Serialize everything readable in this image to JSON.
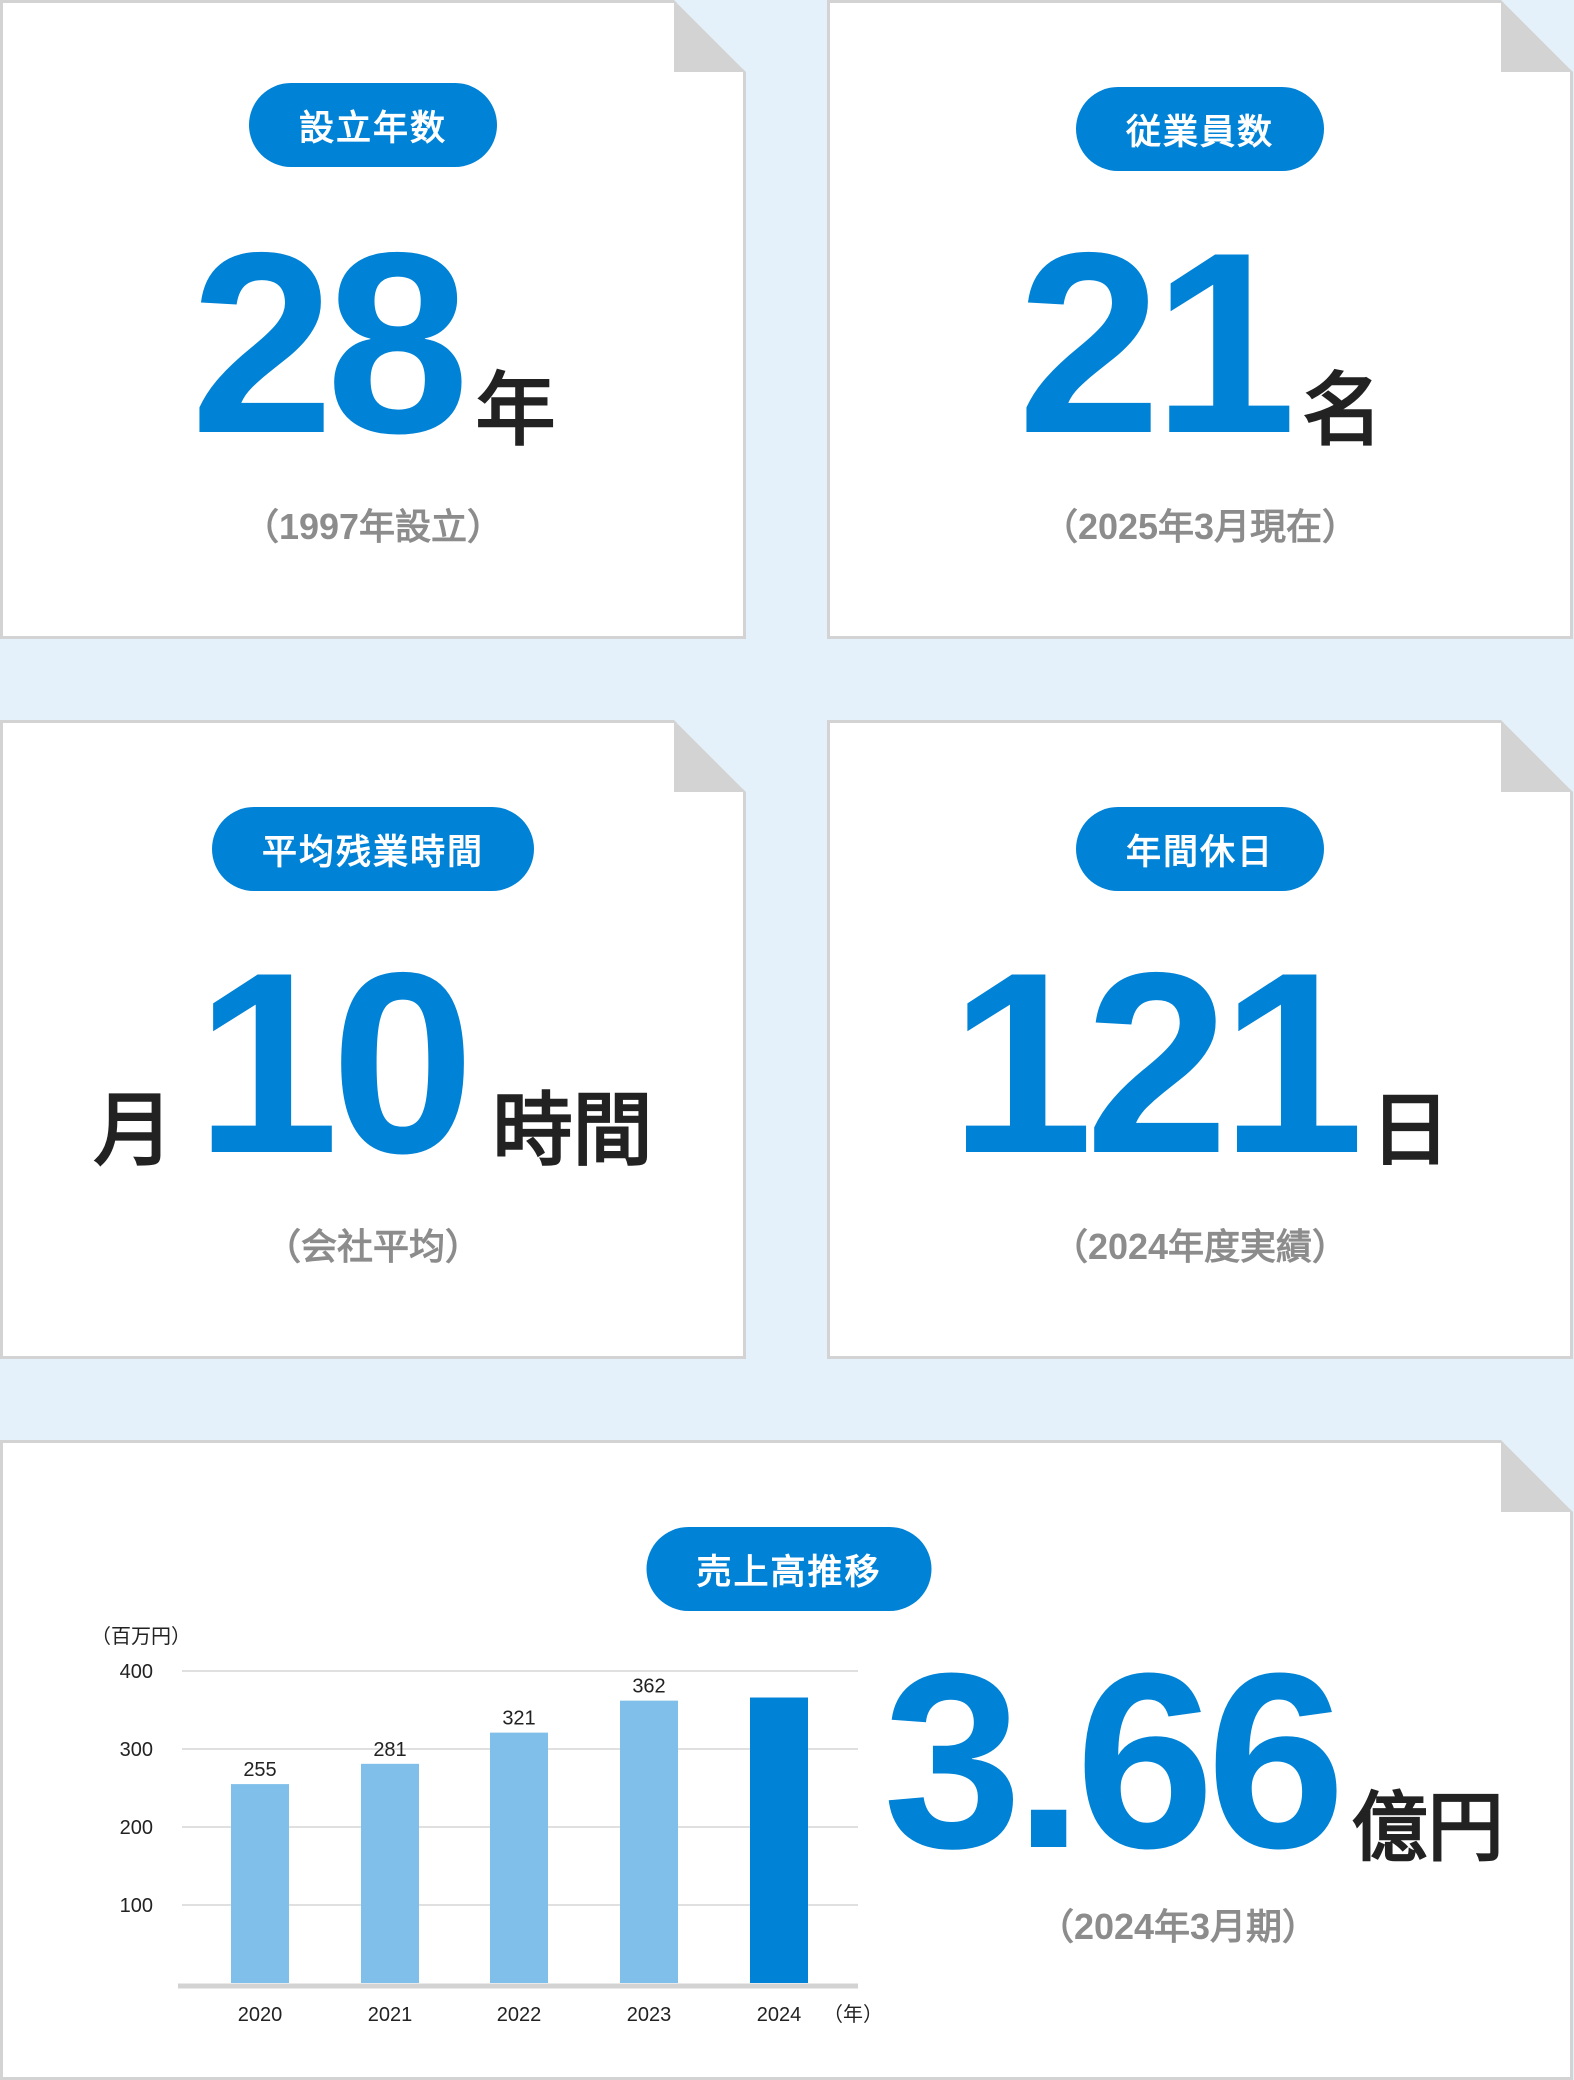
{
  "colors": {
    "accent": "#0082d6",
    "bar_light": "#80bfe9",
    "background": "#e4f1fa",
    "card_border": "#d3d3d3",
    "subtext": "#8c8c8c"
  },
  "cards": [
    {
      "label": "設立年数",
      "value": "28",
      "unit": "年",
      "note": "（1997年設立）"
    },
    {
      "label": "従業員数",
      "value": "21",
      "unit": "名",
      "note": "（2025年3月現在）"
    },
    {
      "label": "平均残業時間",
      "prefix": "月",
      "value": "10",
      "unit": "時間",
      "note": "（会社平均）"
    },
    {
      "label": "年間休日",
      "value": "121",
      "unit": "日",
      "note": "（2024年度実績）"
    }
  ],
  "sales": {
    "label": "売上高推移",
    "value": "3.66",
    "unit": "億円",
    "note": "（2024年3月期）"
  },
  "chart_data": {
    "type": "bar",
    "ylabel": "（百万円）",
    "xlabel": "（年）",
    "categories": [
      "2020",
      "2021",
      "2022",
      "2023",
      "2024"
    ],
    "values": [
      255,
      281,
      321,
      362,
      366
    ],
    "data_labels": [
      "255",
      "281",
      "321",
      "362",
      ""
    ],
    "highlight_index": 4,
    "ylim": [
      0,
      400
    ],
    "yticks": [
      "100",
      "200",
      "300",
      "400"
    ],
    "grid": true
  }
}
